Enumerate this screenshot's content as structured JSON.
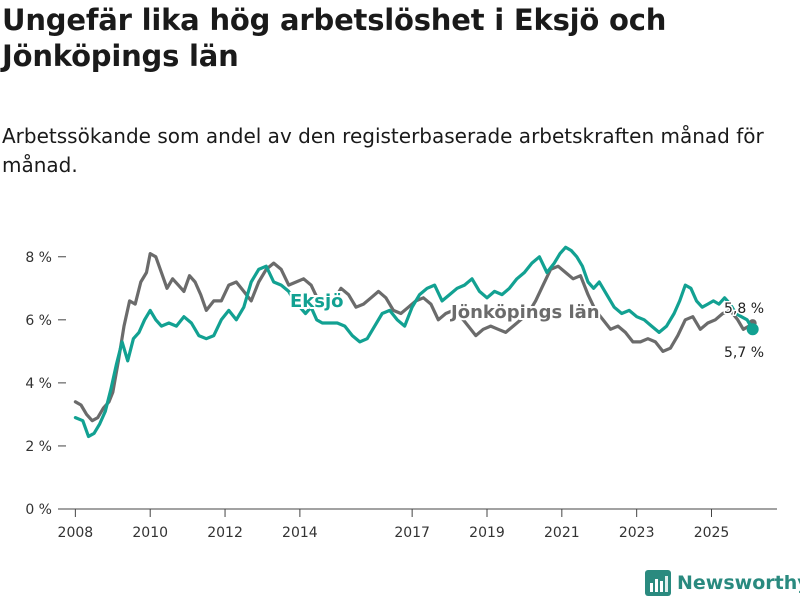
{
  "title": "Ungefär lika hög arbetslöshet i Eksjö och Jönköpings län",
  "subtitle": "Arbetssökande som andel av den registerbaserade arbetskraften månad för månad.",
  "brand": "Newsworthy",
  "colors": {
    "eksjo": "#12a192",
    "lan": "#6b6b6b",
    "brand": "#2a8a7f"
  },
  "chart_data": {
    "type": "line",
    "title": "Ungefär lika hög arbetslöshet i Eksjö och Jönköpings län",
    "xlabel": "",
    "ylabel": "",
    "xlim": [
      2007.75,
      2026.75
    ],
    "ylim": [
      0,
      8.5
    ],
    "grid": false,
    "y_ticks": [
      0,
      2,
      4,
      6,
      8
    ],
    "y_tick_labels": [
      "0 %",
      "2 %",
      "4 %",
      "6 %",
      "8 %"
    ],
    "x_ticks": [
      2008,
      2010,
      2012,
      2014,
      2017,
      2019,
      2021,
      2023,
      2025
    ],
    "x_tick_labels": [
      "2008",
      "2010",
      "2012",
      "2014",
      "2017",
      "2019",
      "2021",
      "2023",
      "2025"
    ],
    "series": [
      {
        "name": "Eksjö",
        "label": "Eksjö",
        "end_label": "5,7 %",
        "end_value": 5.7,
        "points": [
          [
            2008.0,
            2.9
          ],
          [
            2008.2,
            2.8
          ],
          [
            2008.35,
            2.3
          ],
          [
            2008.5,
            2.4
          ],
          [
            2008.65,
            2.7
          ],
          [
            2008.8,
            3.1
          ],
          [
            2008.95,
            3.8
          ],
          [
            2009.1,
            4.6
          ],
          [
            2009.25,
            5.3
          ],
          [
            2009.4,
            4.7
          ],
          [
            2009.55,
            5.4
          ],
          [
            2009.7,
            5.6
          ],
          [
            2009.85,
            6.0
          ],
          [
            2010.0,
            6.3
          ],
          [
            2010.15,
            6.0
          ],
          [
            2010.3,
            5.8
          ],
          [
            2010.5,
            5.9
          ],
          [
            2010.7,
            5.8
          ],
          [
            2010.9,
            6.1
          ],
          [
            2011.1,
            5.9
          ],
          [
            2011.3,
            5.5
          ],
          [
            2011.5,
            5.4
          ],
          [
            2011.7,
            5.5
          ],
          [
            2011.9,
            6.0
          ],
          [
            2012.1,
            6.3
          ],
          [
            2012.3,
            6.0
          ],
          [
            2012.5,
            6.4
          ],
          [
            2012.7,
            7.2
          ],
          [
            2012.9,
            7.6
          ],
          [
            2013.1,
            7.7
          ],
          [
            2013.3,
            7.2
          ],
          [
            2013.5,
            7.1
          ],
          [
            2013.7,
            6.9
          ],
          [
            2013.85,
            6.6
          ],
          [
            2014.0,
            6.4
          ],
          [
            2014.15,
            6.2
          ],
          [
            2014.3,
            6.4
          ],
          [
            2014.45,
            6.0
          ],
          [
            2014.6,
            5.9
          ],
          [
            2014.8,
            5.9
          ],
          [
            2015.0,
            5.9
          ],
          [
            2015.2,
            5.8
          ],
          [
            2015.4,
            5.5
          ],
          [
            2015.6,
            5.3
          ],
          [
            2015.8,
            5.4
          ],
          [
            2016.0,
            5.8
          ],
          [
            2016.2,
            6.2
          ],
          [
            2016.4,
            6.3
          ],
          [
            2016.6,
            6.0
          ],
          [
            2016.8,
            5.8
          ],
          [
            2017.0,
            6.4
          ],
          [
            2017.2,
            6.8
          ],
          [
            2017.4,
            7.0
          ],
          [
            2017.6,
            7.1
          ],
          [
            2017.8,
            6.6
          ],
          [
            2018.0,
            6.8
          ],
          [
            2018.2,
            7.0
          ],
          [
            2018.4,
            7.1
          ],
          [
            2018.6,
            7.3
          ],
          [
            2018.8,
            6.9
          ],
          [
            2019.0,
            6.7
          ],
          [
            2019.2,
            6.9
          ],
          [
            2019.4,
            6.8
          ],
          [
            2019.6,
            7.0
          ],
          [
            2019.8,
            7.3
          ],
          [
            2020.0,
            7.5
          ],
          [
            2020.2,
            7.8
          ],
          [
            2020.4,
            8.0
          ],
          [
            2020.6,
            7.5
          ],
          [
            2020.8,
            7.8
          ],
          [
            2020.95,
            8.1
          ],
          [
            2021.1,
            8.3
          ],
          [
            2021.25,
            8.2
          ],
          [
            2021.4,
            8.0
          ],
          [
            2021.55,
            7.7
          ],
          [
            2021.7,
            7.2
          ],
          [
            2021.85,
            7.0
          ],
          [
            2022.0,
            7.2
          ],
          [
            2022.2,
            6.8
          ],
          [
            2022.4,
            6.4
          ],
          [
            2022.6,
            6.2
          ],
          [
            2022.8,
            6.3
          ],
          [
            2023.0,
            6.1
          ],
          [
            2023.2,
            6.0
          ],
          [
            2023.4,
            5.8
          ],
          [
            2023.6,
            5.6
          ],
          [
            2023.8,
            5.8
          ],
          [
            2024.0,
            6.2
          ],
          [
            2024.15,
            6.6
          ],
          [
            2024.3,
            7.1
          ],
          [
            2024.45,
            7.0
          ],
          [
            2024.6,
            6.6
          ],
          [
            2024.75,
            6.4
          ],
          [
            2024.9,
            6.5
          ],
          [
            2025.05,
            6.6
          ],
          [
            2025.2,
            6.5
          ],
          [
            2025.35,
            6.7
          ],
          [
            2025.5,
            6.5
          ],
          [
            2025.65,
            6.2
          ],
          [
            2025.8,
            6.1
          ],
          [
            2025.95,
            6.0
          ],
          [
            2026.1,
            5.7
          ]
        ]
      },
      {
        "name": "Jönköpings län",
        "label": "Jönköpings län",
        "end_label": "5,8 %",
        "end_value": 5.8,
        "points": [
          [
            2008.0,
            3.4
          ],
          [
            2008.15,
            3.3
          ],
          [
            2008.3,
            3.0
          ],
          [
            2008.45,
            2.8
          ],
          [
            2008.6,
            2.9
          ],
          [
            2008.75,
            3.2
          ],
          [
            2008.9,
            3.4
          ],
          [
            2009.0,
            3.7
          ],
          [
            2009.15,
            4.7
          ],
          [
            2009.3,
            5.8
          ],
          [
            2009.45,
            6.6
          ],
          [
            2009.6,
            6.5
          ],
          [
            2009.75,
            7.2
          ],
          [
            2009.9,
            7.5
          ],
          [
            2010.0,
            8.1
          ],
          [
            2010.15,
            8.0
          ],
          [
            2010.3,
            7.5
          ],
          [
            2010.45,
            7.0
          ],
          [
            2010.6,
            7.3
          ],
          [
            2010.75,
            7.1
          ],
          [
            2010.9,
            6.9
          ],
          [
            2011.05,
            7.4
          ],
          [
            2011.2,
            7.2
          ],
          [
            2011.35,
            6.8
          ],
          [
            2011.5,
            6.3
          ],
          [
            2011.7,
            6.6
          ],
          [
            2011.9,
            6.6
          ],
          [
            2012.1,
            7.1
          ],
          [
            2012.3,
            7.2
          ],
          [
            2012.5,
            6.9
          ],
          [
            2012.7,
            6.6
          ],
          [
            2012.9,
            7.2
          ],
          [
            2013.1,
            7.6
          ],
          [
            2013.3,
            7.8
          ],
          [
            2013.5,
            7.6
          ],
          [
            2013.7,
            7.1
          ],
          [
            2013.9,
            7.2
          ],
          [
            2014.1,
            7.3
          ],
          [
            2014.3,
            7.1
          ],
          [
            2014.5,
            6.6
          ],
          [
            2014.7,
            6.3
          ],
          [
            2014.9,
            6.6
          ],
          [
            2015.1,
            7.0
          ],
          [
            2015.3,
            6.8
          ],
          [
            2015.5,
            6.4
          ],
          [
            2015.7,
            6.5
          ],
          [
            2015.9,
            6.7
          ],
          [
            2016.1,
            6.9
          ],
          [
            2016.3,
            6.7
          ],
          [
            2016.5,
            6.3
          ],
          [
            2016.7,
            6.2
          ],
          [
            2016.9,
            6.4
          ],
          [
            2017.1,
            6.6
          ],
          [
            2017.3,
            6.7
          ],
          [
            2017.5,
            6.5
          ],
          [
            2017.7,
            6.0
          ],
          [
            2017.9,
            6.2
          ],
          [
            2018.1,
            6.3
          ],
          [
            2018.3,
            6.1
          ],
          [
            2018.5,
            5.8
          ],
          [
            2018.7,
            5.5
          ],
          [
            2018.9,
            5.7
          ],
          [
            2019.1,
            5.8
          ],
          [
            2019.3,
            5.7
          ],
          [
            2019.5,
            5.6
          ],
          [
            2019.7,
            5.8
          ],
          [
            2019.9,
            6.0
          ],
          [
            2020.1,
            6.2
          ],
          [
            2020.3,
            6.6
          ],
          [
            2020.5,
            7.1
          ],
          [
            2020.7,
            7.6
          ],
          [
            2020.9,
            7.7
          ],
          [
            2021.1,
            7.5
          ],
          [
            2021.3,
            7.3
          ],
          [
            2021.5,
            7.4
          ],
          [
            2021.7,
            6.8
          ],
          [
            2021.9,
            6.3
          ],
          [
            2022.1,
            6.0
          ],
          [
            2022.3,
            5.7
          ],
          [
            2022.5,
            5.8
          ],
          [
            2022.7,
            5.6
          ],
          [
            2022.9,
            5.3
          ],
          [
            2023.1,
            5.3
          ],
          [
            2023.3,
            5.4
          ],
          [
            2023.5,
            5.3
          ],
          [
            2023.7,
            5.0
          ],
          [
            2023.9,
            5.1
          ],
          [
            2024.1,
            5.5
          ],
          [
            2024.3,
            6.0
          ],
          [
            2024.5,
            6.1
          ],
          [
            2024.7,
            5.7
          ],
          [
            2024.9,
            5.9
          ],
          [
            2025.1,
            6.0
          ],
          [
            2025.3,
            6.2
          ],
          [
            2025.5,
            6.3
          ],
          [
            2025.7,
            6.0
          ],
          [
            2025.85,
            5.7
          ],
          [
            2026.0,
            5.8
          ],
          [
            2026.1,
            5.8
          ]
        ]
      }
    ]
  }
}
